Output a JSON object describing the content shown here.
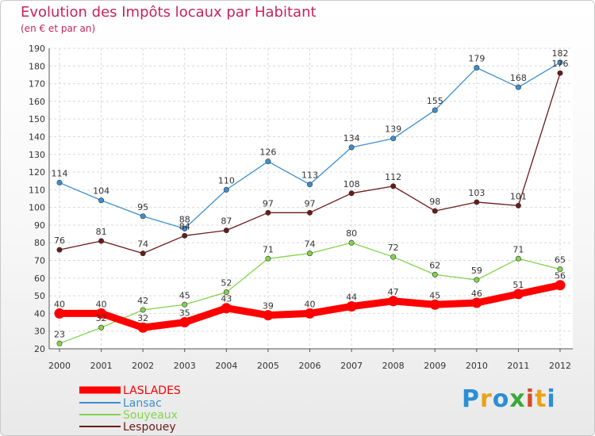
{
  "header": {
    "title": "Evolution des Impôts locaux par Habitant",
    "subtitle": "(en € et par an)"
  },
  "logo": {
    "letters": [
      "P",
      "r",
      "o",
      "x",
      "i",
      "t",
      "i"
    ],
    "colors": [
      "#2a8fd6",
      "#e8a317",
      "#2a8fd6",
      "#3aa83a",
      "#d64a2a",
      "#e8a317",
      "#2a8fd6"
    ]
  },
  "chart_data": {
    "type": "line",
    "x": [
      "2000",
      "2001",
      "2002",
      "2003",
      "2004",
      "2005",
      "2006",
      "2007",
      "2008",
      "2009",
      "2010",
      "2011",
      "2012"
    ],
    "ylim": [
      20,
      190
    ],
    "yticks": [
      20,
      30,
      40,
      50,
      60,
      70,
      80,
      90,
      100,
      110,
      120,
      130,
      140,
      150,
      160,
      170,
      180,
      190
    ],
    "grid": true,
    "legend_position": "bottom-left",
    "series": [
      {
        "name": "LASLADES",
        "color": "#ff0000",
        "values": [
          40,
          40,
          32,
          35,
          43,
          39,
          40,
          44,
          47,
          45,
          46,
          51,
          56
        ]
      },
      {
        "name": "Lansac",
        "color": "#3d8fcf",
        "values": [
          114,
          104,
          95,
          88,
          110,
          126,
          113,
          134,
          139,
          155,
          179,
          168,
          182
        ]
      },
      {
        "name": "Souyeaux",
        "color": "#82d44c",
        "values": [
          23,
          32,
          42,
          45,
          52,
          71,
          74,
          80,
          72,
          62,
          59,
          71,
          65
        ]
      },
      {
        "name": "Lespouey",
        "color": "#6b1a1a",
        "values": [
          76,
          81,
          74,
          84,
          87,
          97,
          97,
          108,
          112,
          98,
          103,
          101,
          176
        ]
      }
    ]
  }
}
